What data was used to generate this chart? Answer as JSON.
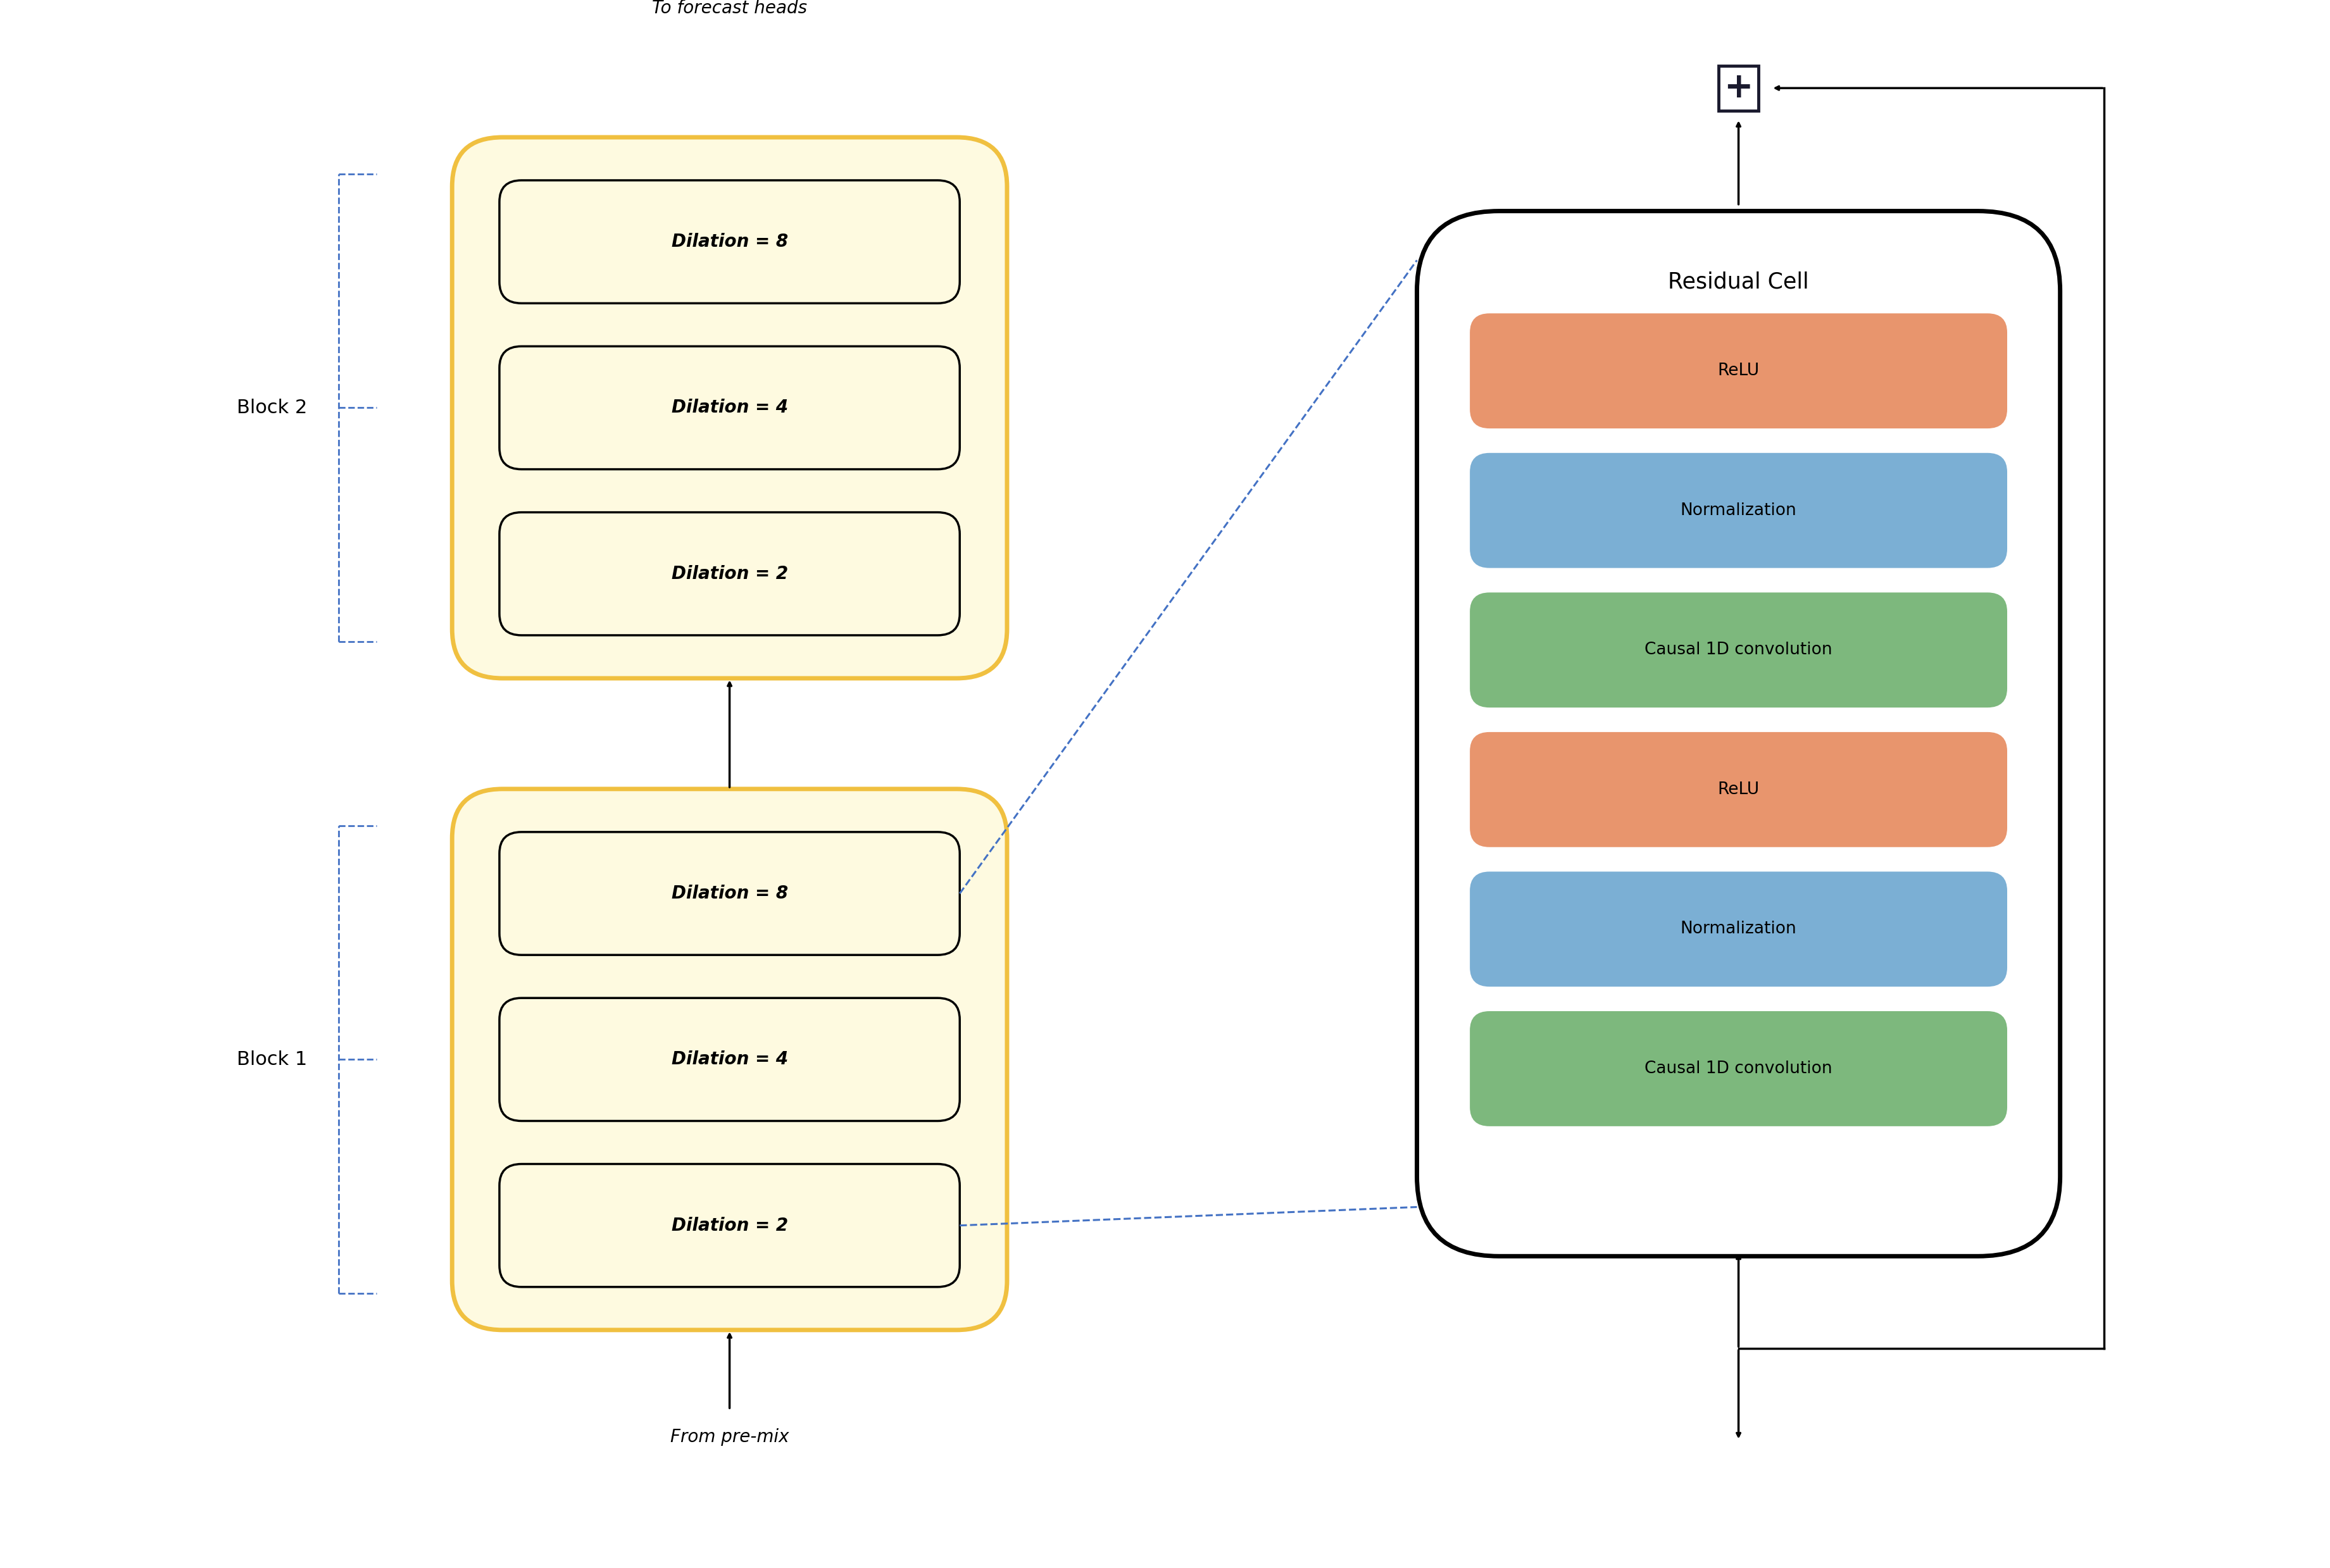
{
  "fig_width": 36.81,
  "fig_height": 24.78,
  "bg_color": "#ffffff",
  "block_bg": "#FEFAE0",
  "block_border": "#F0C040",
  "cell_box_colors": [
    "#E8956D",
    "#7BAFD4",
    "#7DB87D",
    "#E8956D",
    "#7BAFD4",
    "#7DB87D"
  ],
  "cell_box_labels": [
    "ReLU",
    "Normalization",
    "Causal 1D convolution",
    "ReLU",
    "Normalization",
    "Causal 1D convolution"
  ],
  "dilation_labels": [
    "Dilation = 8",
    "Dilation = 4",
    "Dilation = 2"
  ],
  "block1_label": "Block 1",
  "block2_label": "Block 2",
  "cell_title": "Residual Cell",
  "top_label": "To forecast heads",
  "bottom_label": "From pre-mix",
  "dashed_blue": "#4472C4",
  "arrow_color": "#000000",
  "plus_color": "#1a1a2e",
  "dilation_text_color": "#000000"
}
